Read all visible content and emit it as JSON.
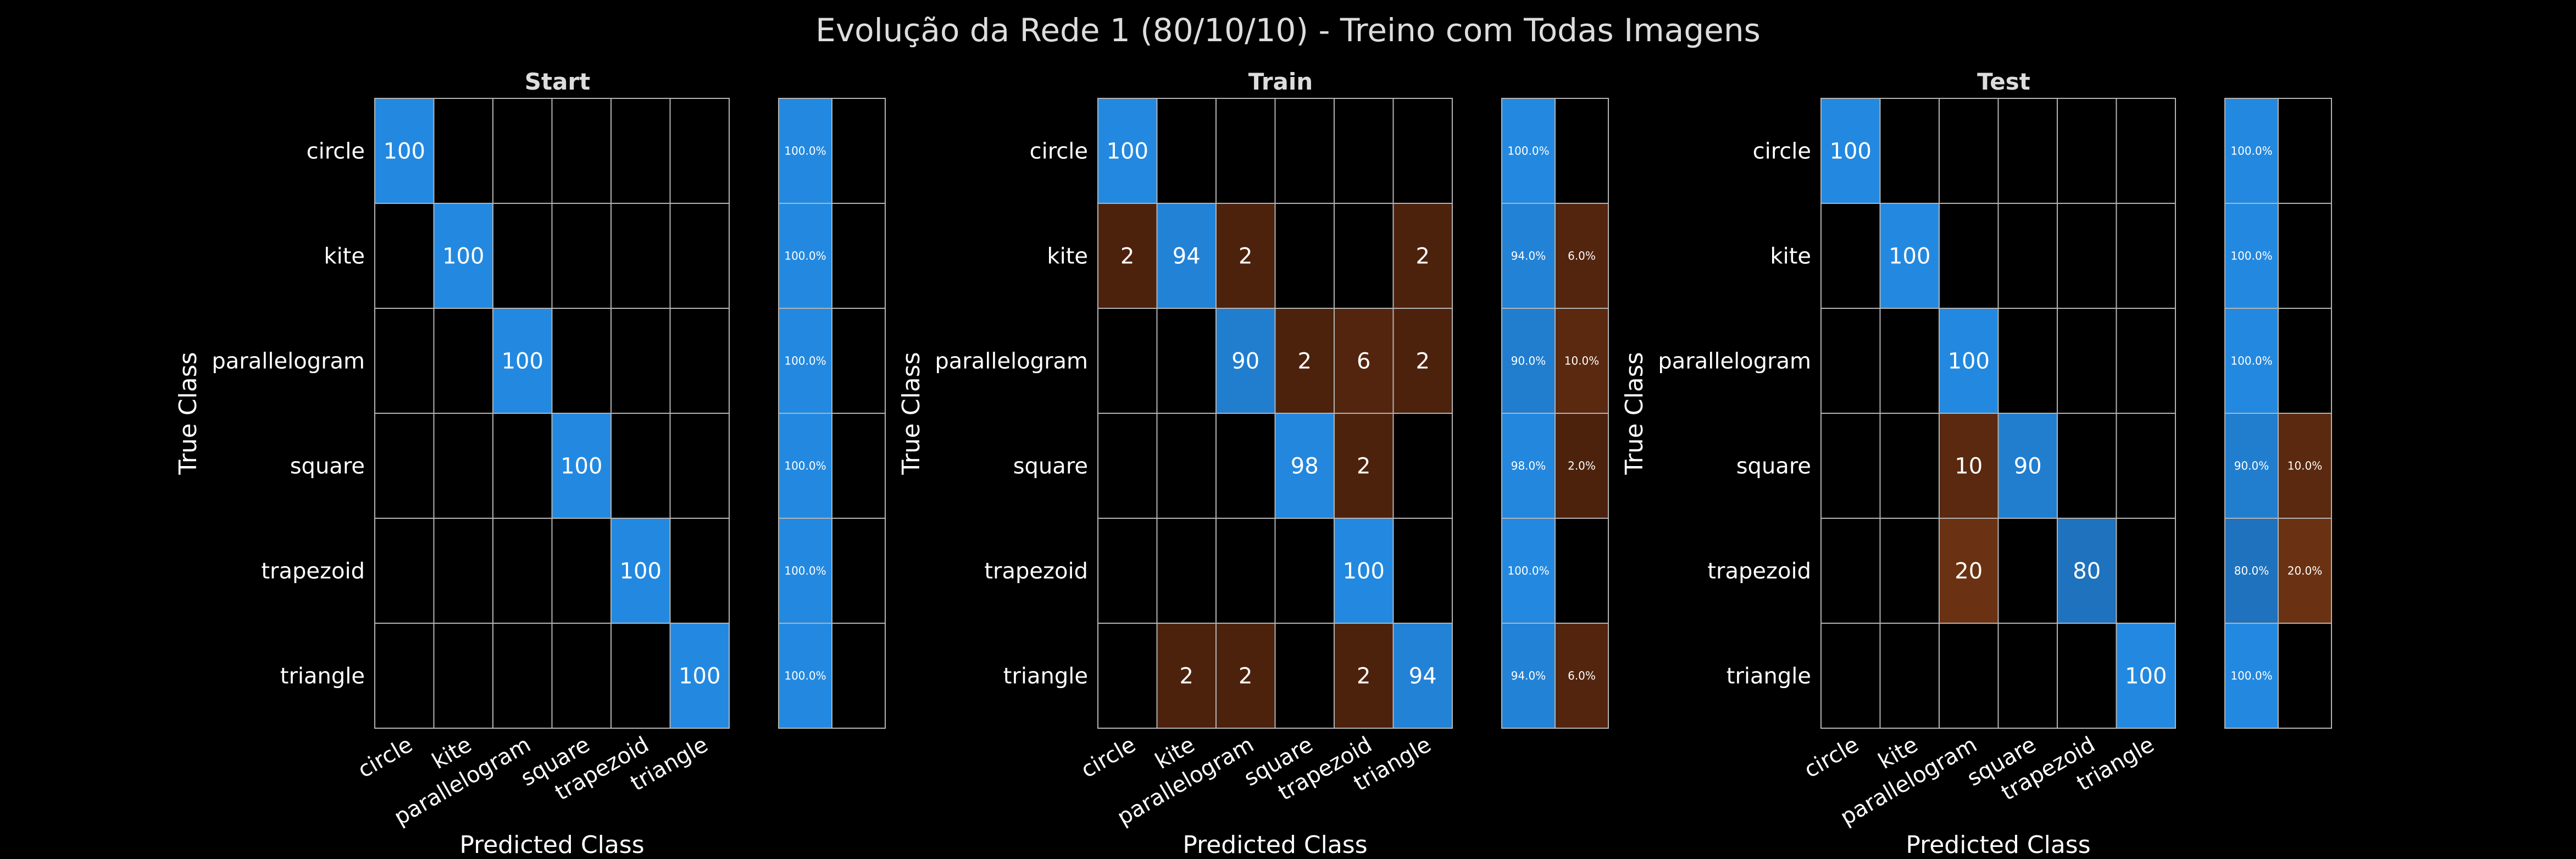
{
  "figure_title": "Evolução da Rede 1 (80/10/10) - Treino com Todas Imagens",
  "colors": {
    "background": "#000000",
    "correct": "#2389e0",
    "error": "#55260f",
    "grid": "#b3b3b3",
    "text": "#ffffff",
    "title": "#dddddd"
  },
  "chart_data": [
    {
      "type": "heatmap",
      "title": "Start",
      "xlabel": "Predicted Class",
      "ylabel": "True Class",
      "categories": [
        "circle",
        "kite",
        "parallelogram",
        "square",
        "trapezoid",
        "triangle"
      ],
      "matrix": [
        [
          100,
          0,
          0,
          0,
          0,
          0
        ],
        [
          0,
          100,
          0,
          0,
          0,
          0
        ],
        [
          0,
          0,
          100,
          0,
          0,
          0
        ],
        [
          0,
          0,
          0,
          100,
          0,
          0
        ],
        [
          0,
          0,
          0,
          0,
          100,
          0
        ],
        [
          0,
          0,
          0,
          0,
          0,
          100
        ]
      ],
      "summary": [
        [
          "100.0%",
          ""
        ],
        [
          "100.0%",
          ""
        ],
        [
          "100.0%",
          ""
        ],
        [
          "100.0%",
          ""
        ],
        [
          "100.0%",
          ""
        ],
        [
          "100.0%",
          ""
        ]
      ]
    },
    {
      "type": "heatmap",
      "title": "Train",
      "xlabel": "Predicted Class",
      "ylabel": "True Class",
      "categories": [
        "circle",
        "kite",
        "parallelogram",
        "square",
        "trapezoid",
        "triangle"
      ],
      "matrix": [
        [
          100,
          0,
          0,
          0,
          0,
          0
        ],
        [
          2,
          94,
          2,
          0,
          0,
          2
        ],
        [
          0,
          0,
          90,
          2,
          6,
          2
        ],
        [
          0,
          0,
          0,
          98,
          2,
          0
        ],
        [
          0,
          0,
          0,
          0,
          100,
          0
        ],
        [
          0,
          2,
          2,
          0,
          2,
          94
        ]
      ],
      "summary": [
        [
          "100.0%",
          ""
        ],
        [
          "94.0%",
          "6.0%"
        ],
        [
          "90.0%",
          "10.0%"
        ],
        [
          "98.0%",
          "2.0%"
        ],
        [
          "100.0%",
          ""
        ],
        [
          "94.0%",
          "6.0%"
        ]
      ]
    },
    {
      "type": "heatmap",
      "title": "Test",
      "xlabel": "Predicted Class",
      "ylabel": "True Class",
      "categories": [
        "circle",
        "kite",
        "parallelogram",
        "square",
        "trapezoid",
        "triangle"
      ],
      "matrix": [
        [
          100,
          0,
          0,
          0,
          0,
          0
        ],
        [
          0,
          100,
          0,
          0,
          0,
          0
        ],
        [
          0,
          0,
          100,
          0,
          0,
          0
        ],
        [
          0,
          0,
          10,
          90,
          0,
          0
        ],
        [
          0,
          0,
          20,
          0,
          80,
          0
        ],
        [
          0,
          0,
          0,
          0,
          0,
          100
        ]
      ],
      "summary": [
        [
          "100.0%",
          ""
        ],
        [
          "100.0%",
          ""
        ],
        [
          "100.0%",
          ""
        ],
        [
          "90.0%",
          "10.0%"
        ],
        [
          "80.0%",
          "20.0%"
        ],
        [
          "100.0%",
          ""
        ]
      ]
    }
  ]
}
